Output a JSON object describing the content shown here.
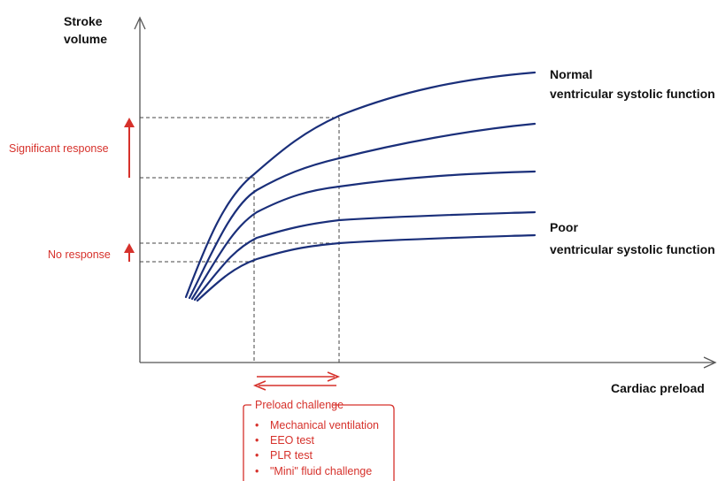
{
  "axes": {
    "y_label_line1": "Stroke",
    "y_label_line2": "volume",
    "x_label": "Cardiac preload"
  },
  "curves": {
    "top_label_line1": "Normal",
    "top_label_line2": "ventricular systolic function",
    "bottom_label_line1": "Poor",
    "bottom_label_line2": "ventricular systolic function"
  },
  "responses": {
    "significant": "Significant response",
    "none": "No response"
  },
  "preload_challenge": {
    "title": "Preload challenge",
    "items": [
      "Mechanical ventilation",
      "EEO test",
      "PLR test",
      "\"Mini\" fluid challenge"
    ]
  },
  "colors": {
    "curve": "#1a2f7a",
    "accent": "#d6312b",
    "axis": "#555555"
  }
}
